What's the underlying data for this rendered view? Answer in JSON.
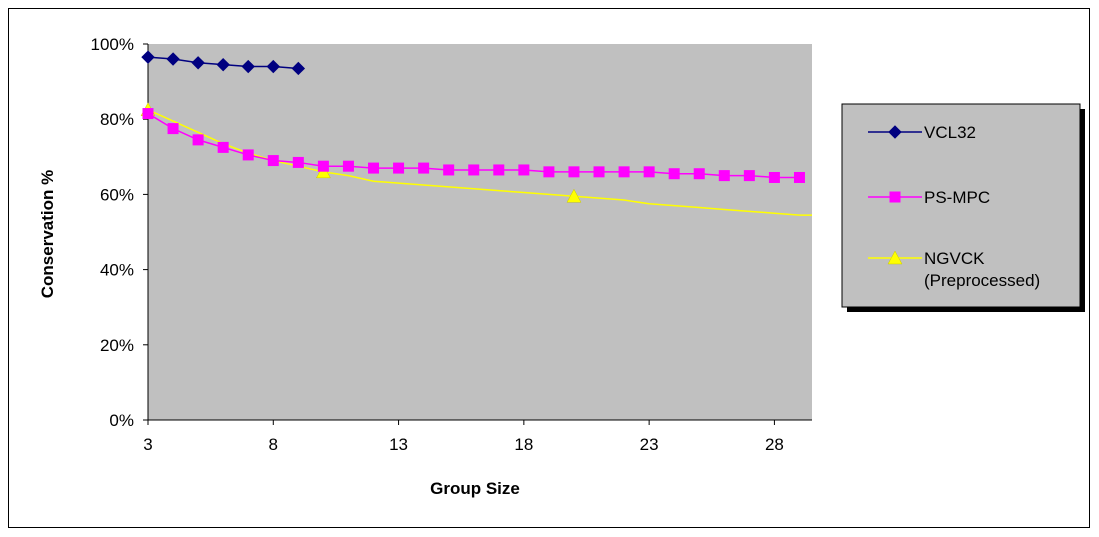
{
  "chart_data": {
    "type": "line",
    "xlabel": "Group Size",
    "ylabel": "Conservation %",
    "xlim": [
      3,
      29.5
    ],
    "ylim": [
      0,
      100
    ],
    "x_ticks": [
      3,
      8,
      13,
      18,
      23,
      28
    ],
    "x_tick_labels": [
      "3",
      "8",
      "13",
      "18",
      "23",
      "28"
    ],
    "y_ticks": [
      0,
      20,
      40,
      60,
      80,
      100
    ],
    "y_tick_labels": [
      "0%",
      "20%",
      "40%",
      "60%",
      "80%",
      "100%"
    ],
    "grid": false,
    "plot_background": "#c0c0c0",
    "legend_position": "right",
    "series": [
      {
        "name": "VCL32",
        "color": "#000080",
        "marker": "diamond",
        "x": [
          3,
          4,
          5,
          6,
          7,
          8,
          9
        ],
        "y": [
          96.5,
          96,
          95,
          94.5,
          94,
          94,
          93.5
        ]
      },
      {
        "name": "PS-MPC",
        "color": "#ff00ff",
        "marker": "square",
        "x": [
          3,
          4,
          5,
          6,
          7,
          8,
          9,
          10,
          11,
          12,
          13,
          14,
          15,
          16,
          17,
          18,
          19,
          20,
          21,
          22,
          23,
          24,
          25,
          26,
          27,
          28,
          29
        ],
        "y": [
          81.5,
          77.5,
          74.5,
          72.5,
          70.5,
          69,
          68.5,
          67.5,
          67.5,
          67,
          67,
          67,
          66.5,
          66.5,
          66.5,
          66.5,
          66,
          66,
          66,
          66,
          66,
          65.5,
          65.5,
          65,
          65,
          64.5,
          64.5
        ]
      },
      {
        "name": "NGVCK (Preprocessed)",
        "name_lines": [
          "NGVCK",
          "(Preprocessed)"
        ],
        "color": "#ffff00",
        "marker": "triangle",
        "marker_x": [
          3,
          10,
          20
        ],
        "x": [
          3,
          4,
          5,
          6,
          7,
          8,
          9,
          10,
          11,
          12,
          13,
          14,
          15,
          16,
          17,
          18,
          19,
          20,
          21,
          22,
          23,
          24,
          25,
          26,
          27,
          28,
          29,
          29.5
        ],
        "y": [
          82.5,
          79.5,
          76.5,
          73.5,
          71,
          69,
          67.5,
          66,
          65,
          63.5,
          63,
          62.5,
          62,
          61.5,
          61,
          60.5,
          60,
          59.5,
          59,
          58.5,
          57.5,
          57,
          56.5,
          56,
          55.5,
          55,
          54.5,
          54.5
        ]
      }
    ]
  }
}
